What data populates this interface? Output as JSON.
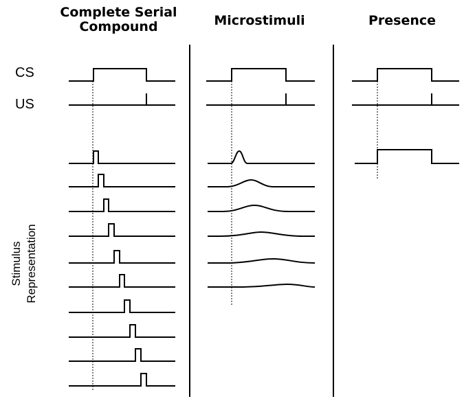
{
  "columns": {
    "csc": {
      "title_line1": "Complete Serial",
      "title_line2": "Compound"
    },
    "micro": {
      "title": "Microstimuli"
    },
    "presence": {
      "title": "Presence"
    }
  },
  "rows": {
    "cs_label": "CS",
    "us_label": "US"
  },
  "stimulus_label": {
    "line1": "Stimulus",
    "line2": "Representation"
  },
  "colors": {
    "stroke": "#000000",
    "background": "#ffffff"
  }
}
